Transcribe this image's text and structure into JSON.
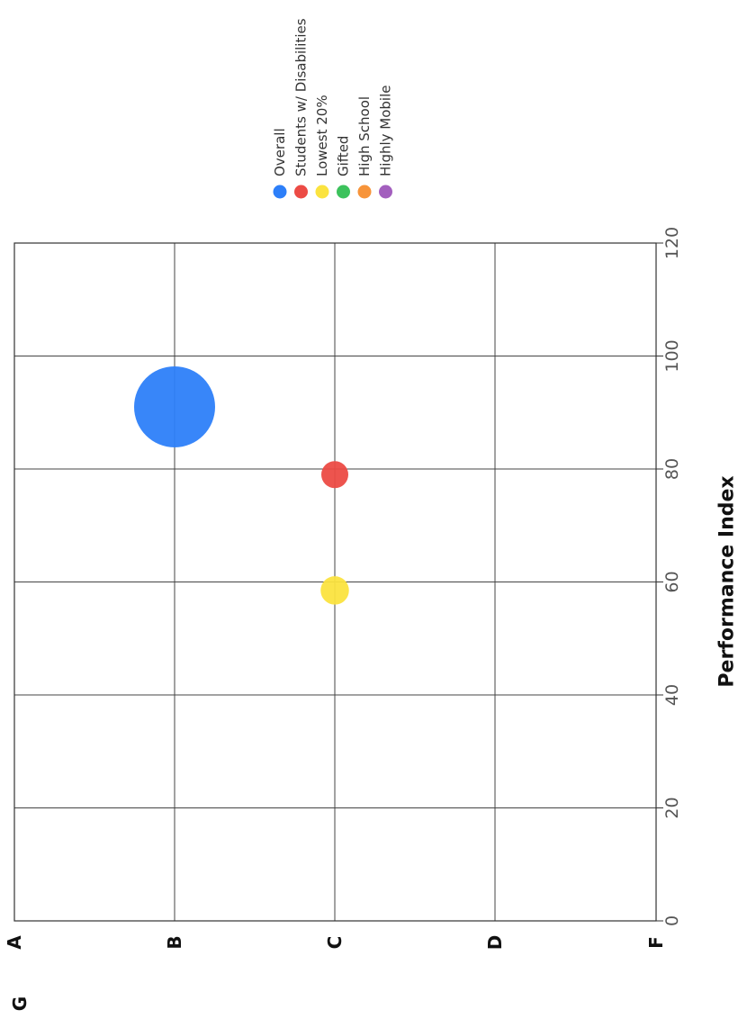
{
  "chart_data": {
    "type": "scatter",
    "title": "",
    "xlabel": "Performance Index",
    "ylabel": "G",
    "xlim": [
      0,
      120
    ],
    "x_ticks": [
      "0",
      "20",
      "40",
      "60",
      "80",
      "100",
      "120"
    ],
    "grade_ticks": [
      "A",
      "B",
      "C",
      "D",
      "F"
    ],
    "grid": true,
    "legend_position": "top-right",
    "series": [
      {
        "name": "Overall",
        "color": "#2d7ff9",
        "points": [
          {
            "x": 91,
            "grade": "B",
            "size": 3.0
          }
        ]
      },
      {
        "name": "Students w/ Disabilities",
        "color": "#ec4b45",
        "points": [
          {
            "x": 79,
            "grade": "C",
            "size": 1.0
          }
        ]
      },
      {
        "name": "Lowest 20%",
        "color": "#fbe33f",
        "points": [
          {
            "x": 58.5,
            "grade": "C",
            "size": 1.05
          }
        ]
      },
      {
        "name": "Gifted",
        "color": "#3cc25c",
        "points": []
      },
      {
        "name": "High School",
        "color": "#f7943a",
        "points": []
      },
      {
        "name": "Highly Mobile",
        "color": "#a35fbe",
        "points": []
      }
    ]
  }
}
